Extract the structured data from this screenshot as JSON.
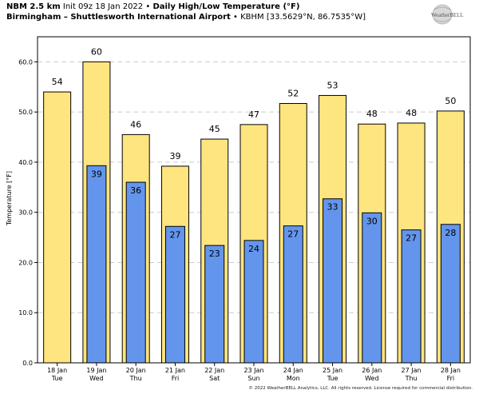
{
  "header": {
    "model": "NBM 2.5 km",
    "init": "Init 09z 18 Jan 2022",
    "separator": "•",
    "product": "Daily High/Low Temperature (°F)",
    "station": "Birmingham – Shuttlesworth International Airport",
    "station_id": "• KBHM [33.5629°N, 86.7535°W]"
  },
  "logo": {
    "text": "WeatherBELL",
    "icon": "weatherbell-logo-icon"
  },
  "footer": {
    "text": "© 2022 WeatherBELL Analytics, LLC. All rights reserved. License required for commercial distribution."
  },
  "colors": {
    "high": "#FFE57F",
    "low": "#6495ED",
    "edge": "#000000",
    "grid": "#cccccc"
  },
  "chart_data": {
    "type": "bar",
    "title": "Daily High/Low Temperature (°F)",
    "ylabel": "Temperature [°F]",
    "ylim": [
      0,
      65
    ],
    "yticks": [
      "0.0",
      "10.0",
      "20.0",
      "30.0",
      "40.0",
      "50.0",
      "60.0"
    ],
    "ytick_values": [
      0,
      10,
      20,
      30,
      40,
      50,
      60
    ],
    "grid": "horizontal dashed",
    "categories": [
      [
        "18 Jan",
        "Tue"
      ],
      [
        "19 Jan",
        "Wed"
      ],
      [
        "20 Jan",
        "Thu"
      ],
      [
        "21 Jan",
        "Fri"
      ],
      [
        "22 Jan",
        "Sat"
      ],
      [
        "23 Jan",
        "Sun"
      ],
      [
        "24 Jan",
        "Mon"
      ],
      [
        "25 Jan",
        "Tue"
      ],
      [
        "26 Jan",
        "Wed"
      ],
      [
        "27 Jan",
        "Thu"
      ],
      [
        "28 Jan",
        "Fri"
      ]
    ],
    "series": [
      {
        "values": [
          54,
          60,
          46,
          39,
          45,
          47,
          52,
          53,
          48,
          48,
          50
        ],
        "labels": [
          "54",
          "60",
          "46",
          "39",
          "45",
          "47",
          "52",
          "53",
          "48",
          "48",
          "50"
        ]
      },
      {
        "values": [
          null,
          39,
          36,
          27,
          23,
          24,
          27,
          33,
          30,
          27,
          28
        ],
        "labels": [
          "",
          "39",
          "36",
          "27",
          "23",
          "24",
          "27",
          "33",
          "30",
          "27",
          "28"
        ]
      }
    ],
    "bar_heights": {
      "high": [
        54,
        60,
        45.5,
        39.2,
        44.6,
        47.5,
        51.7,
        53.3,
        47.6,
        47.8,
        50.2
      ],
      "low": [
        null,
        39.3,
        36.0,
        27.2,
        23.4,
        24.4,
        27.3,
        32.7,
        29.9,
        26.5,
        27.6
      ]
    }
  }
}
